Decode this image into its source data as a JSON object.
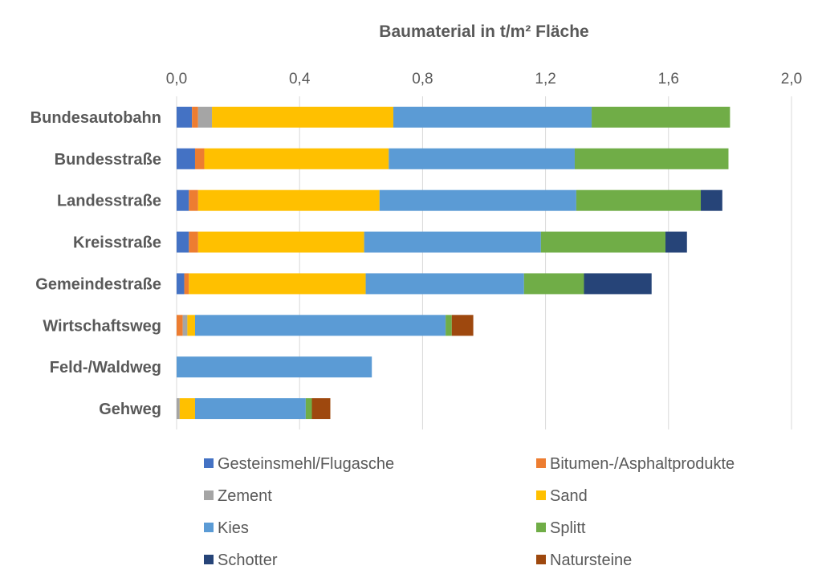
{
  "chart_data": {
    "type": "bar",
    "orientation": "horizontal",
    "stacked": true,
    "title": "Baumaterial in t/m² Fläche",
    "xlim": [
      0,
      2.0
    ],
    "xticks": [
      "0,0",
      "0,4",
      "0,8",
      "1,2",
      "1,6",
      "2,0"
    ],
    "xtick_values": [
      0,
      0.4,
      0.8,
      1.2,
      1.6,
      2.0
    ],
    "grid": true,
    "legend_position": "bottom",
    "categories": [
      "Bundesautobahn",
      "Bundesstraße",
      "Landesstraße",
      "Kreisstraße",
      "Gemeindestraße",
      "Wirtschaftsweg",
      "Feld-/Waldweg",
      "Gehweg"
    ],
    "series": [
      {
        "name": "Gesteinsmehl/Flugasche",
        "color": "#4472c4",
        "values": [
          0.05,
          0.06,
          0.04,
          0.04,
          0.025,
          0.0,
          0.0,
          0.0
        ]
      },
      {
        "name": "Bitumen-/Asphaltprodukte",
        "color": "#ed7d31",
        "values": [
          0.02,
          0.03,
          0.03,
          0.03,
          0.015,
          0.02,
          0.0,
          0.0
        ]
      },
      {
        "name": "Zement",
        "color": "#a5a5a5",
        "values": [
          0.045,
          0.0,
          0.0,
          0.0,
          0.0,
          0.015,
          0.0,
          0.01
        ]
      },
      {
        "name": "Sand",
        "color": "#ffc000",
        "values": [
          0.59,
          0.6,
          0.59,
          0.54,
          0.575,
          0.025,
          0.0,
          0.05
        ]
      },
      {
        "name": "Kies",
        "color": "#5b9bd5",
        "values": [
          0.645,
          0.605,
          0.64,
          0.575,
          0.515,
          0.815,
          0.635,
          0.36
        ]
      },
      {
        "name": "Splitt",
        "color": "#70ad47",
        "values": [
          0.45,
          0.5,
          0.405,
          0.405,
          0.195,
          0.02,
          0.0,
          0.02
        ]
      },
      {
        "name": "Schotter",
        "color": "#264478",
        "values": [
          0.0,
          0.0,
          0.07,
          0.07,
          0.22,
          0.0,
          0.0,
          0.0
        ]
      },
      {
        "name": "Natursteine",
        "color": "#9e480e",
        "values": [
          0.0,
          0.0,
          0.0,
          0.0,
          0.0,
          0.07,
          0.0,
          0.06
        ]
      }
    ]
  }
}
